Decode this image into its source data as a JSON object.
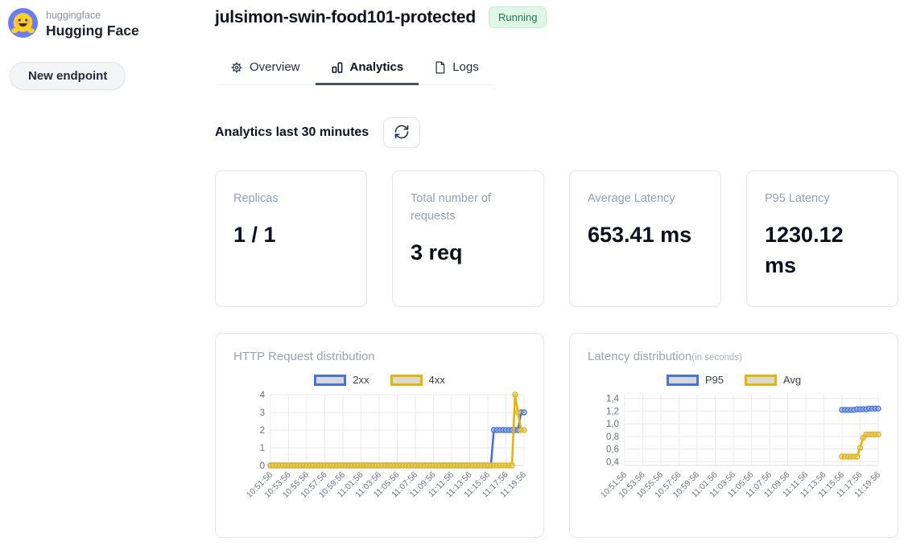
{
  "brand": {
    "org": "huggingface",
    "name": "Hugging Face"
  },
  "sidebar": {
    "new_endpoint_label": "New endpoint"
  },
  "header": {
    "title": "julsimon-swin-food101-protected",
    "status": "Running"
  },
  "tabs": [
    {
      "label": "Overview",
      "icon": "gear-icon",
      "active": false
    },
    {
      "label": "Analytics",
      "icon": "bar-chart-icon",
      "active": true
    },
    {
      "label": "Logs",
      "icon": "document-icon",
      "active": false
    }
  ],
  "analytics": {
    "heading": "Analytics last 30 minutes"
  },
  "stats": [
    {
      "label": "Replicas",
      "value": "1 / 1"
    },
    {
      "label": "Total number of requests",
      "value": "3 req"
    },
    {
      "label": "Average Latency",
      "value": "653.41 ms"
    },
    {
      "label": "P95 Latency",
      "value": "1230.12 ms"
    }
  ],
  "colors": {
    "series_blue": "#4273e0",
    "series_gold": "#e7b500",
    "status_green_bg": "#def7e9",
    "status_green_text": "#20784e",
    "active_tab_underline": "#4a5263",
    "logo_circle": "#6b7bfe",
    "logo_face": "#ffd21e"
  },
  "chart_data": [
    {
      "type": "line",
      "title": "HTTP Request distribution",
      "subtitle": "",
      "legend_position": "top",
      "grid": true,
      "n_points": 85,
      "tick_every": 6,
      "x_start": "10:51:56",
      "x_interval_seconds": 20,
      "x_tick_labels": [
        "10:51:56",
        "10:53:56",
        "10:55:56",
        "10:57:56",
        "10:59:56",
        "11:01:56",
        "11:03:56",
        "11:05:56",
        "11:07:56",
        "11:09:56",
        "11:11:56",
        "11:13:56",
        "11:15:56",
        "11:17:56",
        "11:19:56"
      ],
      "y_domain": [
        0,
        4
      ],
      "y_ticks": [
        {
          "v": 0,
          "label": "0"
        },
        {
          "v": 1,
          "label": "1"
        },
        {
          "v": 2,
          "label": "2"
        },
        {
          "v": 3,
          "label": "3"
        },
        {
          "v": 4,
          "label": "4"
        }
      ],
      "series": [
        {
          "name": "2xx",
          "color": "#4273e0",
          "segments": [
            {
              "from": 0,
              "to": 73,
              "v": 0
            },
            {
              "from": 74,
              "to": 82,
              "v": 2
            },
            {
              "from": 83,
              "to": 84,
              "v": 3
            }
          ]
        },
        {
          "name": "4xx",
          "color": "#e7b500",
          "segments": [
            {
              "from": 0,
              "to": 80,
              "v": 0
            },
            {
              "from": 81,
              "to": 81,
              "v": 4
            },
            {
              "from": 82,
              "to": 82,
              "v": 3
            },
            {
              "from": 83,
              "to": 84,
              "v": 2
            }
          ]
        }
      ]
    },
    {
      "type": "line",
      "title": "Latency distribution",
      "subtitle": "(in seconds)",
      "legend_position": "top",
      "grid": true,
      "n_points": 85,
      "tick_every": 6,
      "x_start": "10:51:56",
      "x_interval_seconds": 20,
      "x_tick_labels": [
        "10:51:56",
        "10:53:56",
        "10:55:56",
        "10:57:56",
        "10:59:56",
        "11:01:56",
        "11:03:56",
        "11:05:56",
        "11:07:56",
        "11:09:56",
        "11:11:56",
        "11:13:56",
        "11:15:56",
        "11:17:56",
        "11:19:56"
      ],
      "y_domain": [
        0.34,
        1.46
      ],
      "y_ticks": [
        {
          "v": 0.4,
          "label": "0,4"
        },
        {
          "v": 0.6,
          "label": "0,6"
        },
        {
          "v": 0.8,
          "label": "0,8"
        },
        {
          "v": 1.0,
          "label": "1,0"
        },
        {
          "v": 1.2,
          "label": "1,2"
        },
        {
          "v": 1.4,
          "label": "1,4"
        }
      ],
      "series": [
        {
          "name": "P95",
          "color": "#4273e0",
          "segments": [
            {
              "from": 72,
              "to": 76,
              "v": 1.22
            },
            {
              "from": 77,
              "to": 80,
              "v": 1.23
            },
            {
              "from": 81,
              "to": 84,
              "v": 1.24
            }
          ]
        },
        {
          "name": "Avg",
          "color": "#e7b500",
          "segments": [
            {
              "from": 72,
              "to": 77,
              "v": 0.48
            },
            {
              "from": 78,
              "to": 78,
              "v": 0.62
            },
            {
              "from": 79,
              "to": 79,
              "v": 0.78
            },
            {
              "from": 80,
              "to": 84,
              "v": 0.83
            }
          ]
        }
      ]
    }
  ]
}
